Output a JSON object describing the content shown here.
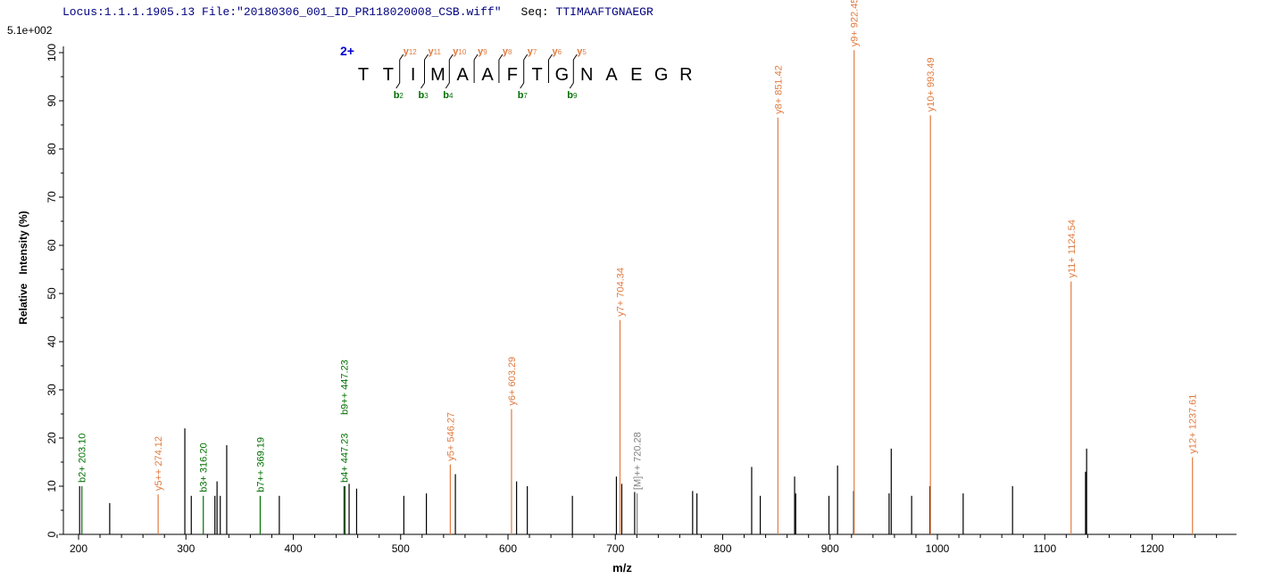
{
  "header": {
    "locus": "Locus:1.1.1.1905.13",
    "file": "File:\"20180306_001_ID_PR118020008_CSB.wiff\"",
    "seq_label": "Seq:",
    "seq": "TTIMAAFTGNAEGR"
  },
  "chart_data": {
    "type": "bar",
    "max_intensity_label": "5.1e+002",
    "xlabel": "m/z",
    "ylabel": "Relative   Intensity (%)",
    "xlim": [
      190,
      1270
    ],
    "ylim": [
      0,
      100
    ],
    "xticks": [
      200,
      300,
      400,
      500,
      600,
      700,
      800,
      900,
      1000,
      1100,
      1200
    ],
    "yticks": [
      0,
      10,
      20,
      30,
      40,
      50,
      60,
      70,
      80,
      90,
      100
    ],
    "colors": {
      "unmatched": "#000000",
      "b_ion": "#007000",
      "y_ion": "#e07b40",
      "precursor": "#808080",
      "charge": "#0000cc"
    },
    "peaks": [
      [
        201,
        10
      ],
      [
        229,
        6.5
      ],
      [
        299,
        22
      ],
      [
        305,
        8
      ],
      [
        327,
        8
      ],
      [
        329,
        11
      ],
      [
        332,
        8
      ],
      [
        338,
        18.5
      ],
      [
        387,
        8
      ],
      [
        448,
        10
      ],
      [
        452,
        10.5
      ],
      [
        459,
        9.5
      ],
      [
        503,
        8
      ],
      [
        524,
        8.5
      ],
      [
        551,
        12.5
      ],
      [
        608,
        11
      ],
      [
        618,
        10
      ],
      [
        660,
        8
      ],
      [
        701,
        12
      ],
      [
        706,
        10.5
      ],
      [
        718,
        8.8
      ],
      [
        772,
        9
      ],
      [
        776,
        8.5
      ],
      [
        827,
        14
      ],
      [
        835,
        8
      ],
      [
        867,
        12
      ],
      [
        868,
        8.5
      ],
      [
        899,
        8
      ],
      [
        907,
        14.3
      ],
      [
        922,
        9
      ],
      [
        955,
        8.5
      ],
      [
        957,
        17.8
      ],
      [
        976,
        8
      ],
      [
        993,
        10
      ],
      [
        1024,
        8.5
      ],
      [
        1070,
        10
      ],
      [
        1138,
        13
      ],
      [
        1139,
        17.8
      ]
    ],
    "annotated": [
      {
        "mz": 203.1,
        "y": 10,
        "type": "b_ion",
        "labels": [
          "b2+ 203.10"
        ]
      },
      {
        "mz": 274.12,
        "y": 8.3,
        "type": "y_ion",
        "labels": [
          "y5++ 274.12"
        ]
      },
      {
        "mz": 316.2,
        "y": 8,
        "type": "b_ion",
        "labels": [
          "b3+ 316.20"
        ]
      },
      {
        "mz": 369.19,
        "y": 8,
        "type": "b_ion",
        "labels": [
          "b7++ 369.19"
        ]
      },
      {
        "mz": 447.23,
        "y": 10,
        "type": "b_ion",
        "labels": [
          "b4+ 447.23",
          "b9++ 447.23"
        ]
      },
      {
        "mz": 546.27,
        "y": 14.5,
        "type": "y_ion",
        "labels": [
          "y5+ 546.27"
        ]
      },
      {
        "mz": 603.29,
        "y": 26,
        "type": "y_ion",
        "labels": [
          "y6+ 603.29"
        ]
      },
      {
        "mz": 704.34,
        "y": 44.5,
        "type": "y_ion",
        "labels": [
          "y7+ 704.34"
        ]
      },
      {
        "mz": 720.28,
        "y": 8.5,
        "type": "precursor",
        "labels": [
          "[M]++ 720.28"
        ]
      },
      {
        "mz": 851.42,
        "y": 86.5,
        "type": "y_ion",
        "labels": [
          "y8+ 851.42"
        ]
      },
      {
        "mz": 922.45,
        "y": 100.5,
        "type": "y_ion",
        "labels": [
          "y9+ 922.45"
        ]
      },
      {
        "mz": 993.49,
        "y": 87,
        "type": "y_ion",
        "labels": [
          "y10+ 993.49"
        ]
      },
      {
        "mz": 1124.54,
        "y": 52.5,
        "type": "y_ion",
        "labels": [
          "y11+ 1124.54"
        ]
      },
      {
        "mz": 1237.61,
        "y": 16,
        "type": "y_ion",
        "labels": [
          "y12+ 1237.61"
        ]
      }
    ],
    "sequence_map": {
      "charge": "2+",
      "residues": [
        "T",
        "T",
        "I",
        "M",
        "A",
        "A",
        "F",
        "T",
        "G",
        "N",
        "A",
        "E",
        "G",
        "R"
      ],
      "y_cuts": [
        {
          "after": 2,
          "label": "y",
          "n": "12"
        },
        {
          "after": 3,
          "label": "y",
          "n": "11"
        },
        {
          "after": 4,
          "label": "y",
          "n": "10"
        },
        {
          "after": 5,
          "label": "y",
          "n": "9"
        },
        {
          "after": 6,
          "label": "y",
          "n": "8"
        },
        {
          "after": 7,
          "label": "y",
          "n": "7"
        },
        {
          "after": 8,
          "label": "y",
          "n": "6"
        },
        {
          "after": 9,
          "label": "y",
          "n": "5"
        }
      ],
      "b_cuts": [
        {
          "after": 2,
          "label": "b",
          "n": "2"
        },
        {
          "after": 3,
          "label": "b",
          "n": "3"
        },
        {
          "after": 4,
          "label": "b",
          "n": "4"
        },
        {
          "after": 7,
          "label": "b",
          "n": "7"
        },
        {
          "after": 9,
          "label": "b",
          "n": "9"
        }
      ]
    }
  }
}
